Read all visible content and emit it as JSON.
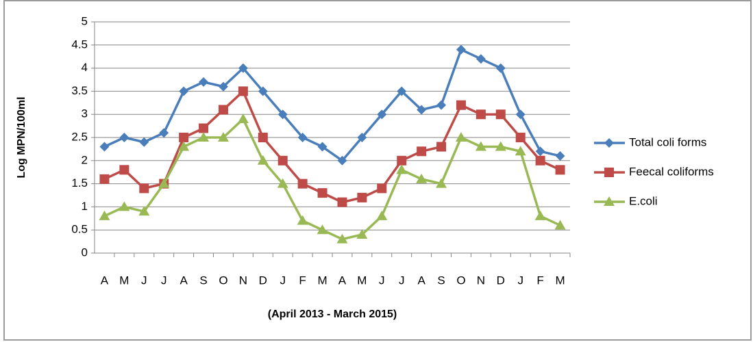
{
  "chart_data": {
    "type": "line",
    "y_label": "Log MPN/100ml",
    "x_label": "(April 2013 - March 2015)",
    "categories": [
      "A",
      "M",
      "J",
      "J",
      "A",
      "S",
      "O",
      "N",
      "D",
      "J",
      "F",
      "M",
      "A",
      "M",
      "J",
      "J",
      "A",
      "S",
      "O",
      "N",
      "D",
      "J",
      "F",
      "M"
    ],
    "series": [
      {
        "name": "Total coli forms",
        "color": "#4a7ebb",
        "marker": "diamond",
        "values": [
          2.3,
          2.5,
          2.4,
          2.6,
          3.5,
          3.7,
          3.6,
          4.0,
          3.5,
          3.0,
          2.5,
          2.3,
          2.0,
          2.5,
          3.0,
          3.5,
          3.1,
          3.2,
          4.4,
          4.2,
          4.0,
          3.0,
          2.2,
          2.1
        ]
      },
      {
        "name": "Feecal coliforms",
        "color": "#be4b48",
        "marker": "square",
        "values": [
          1.6,
          1.8,
          1.4,
          1.5,
          2.5,
          2.7,
          3.1,
          3.5,
          2.5,
          2.0,
          1.5,
          1.3,
          1.1,
          1.2,
          1.4,
          2.0,
          2.2,
          2.3,
          3.2,
          3.0,
          3.0,
          2.5,
          2.0,
          1.8
        ]
      },
      {
        "name": "E.coli",
        "color": "#98b954",
        "marker": "triangle",
        "values": [
          0.8,
          1.0,
          0.9,
          1.5,
          2.3,
          2.5,
          2.5,
          2.9,
          2.0,
          1.5,
          0.7,
          0.5,
          0.3,
          0.4,
          0.8,
          1.8,
          1.6,
          1.5,
          2.5,
          2.3,
          2.3,
          2.2,
          0.8,
          0.6
        ]
      }
    ],
    "ylim": [
      0,
      5
    ],
    "yticks": [
      0,
      0.5,
      1,
      1.5,
      2,
      2.5,
      3,
      3.5,
      4,
      4.5,
      5
    ],
    "grid": true,
    "legend": "right"
  }
}
